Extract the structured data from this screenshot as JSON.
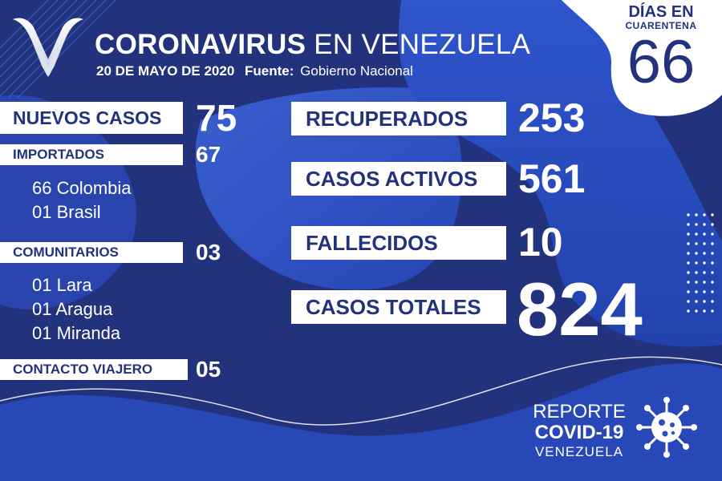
{
  "header": {
    "title_bold": "CORONAVIRUS",
    "title_light": "EN VENEZUELA",
    "date": "20 DE MAYO DE 2020",
    "source_label": "Fuente:",
    "source": "Gobierno Nacional"
  },
  "quarantine": {
    "label": "DÍAS EN",
    "label2": "CUARENTENA",
    "value": "66"
  },
  "left_stats": {
    "nuevos_casos": {
      "label": "NUEVOS CASOS",
      "value": "75"
    },
    "importados": {
      "label": "IMPORTADOS",
      "value": "67",
      "items": [
        "66 Colombia",
        "01 Brasil"
      ]
    },
    "comunitarios": {
      "label": "COMUNITARIOS",
      "value": "03",
      "items": [
        "01 Lara",
        "01 Aragua",
        "01 Miranda"
      ]
    },
    "contacto_viajero": {
      "label": "CONTACTO VIAJERO",
      "value": "05"
    }
  },
  "right_stats": {
    "recuperados": {
      "label": "RECUPERADOS",
      "value": "253"
    },
    "casos_activos": {
      "label": "CASOS ACTIVOS",
      "value": "561"
    },
    "fallecidos": {
      "label": "FALLECIDOS",
      "value": "10"
    },
    "casos_totales": {
      "label": "CASOS TOTALES",
      "value": "824"
    }
  },
  "footer": {
    "line1": "REPORTE",
    "line2": "COVID-19",
    "line3": "VENEZUELA"
  },
  "icons": {
    "logo": "v-logo-icon",
    "virus": "virus-icon"
  },
  "colors": {
    "navy": "#22327c",
    "blue": "#2a4fc0",
    "light_blue": "#3a64d6",
    "white": "#ffffff"
  }
}
